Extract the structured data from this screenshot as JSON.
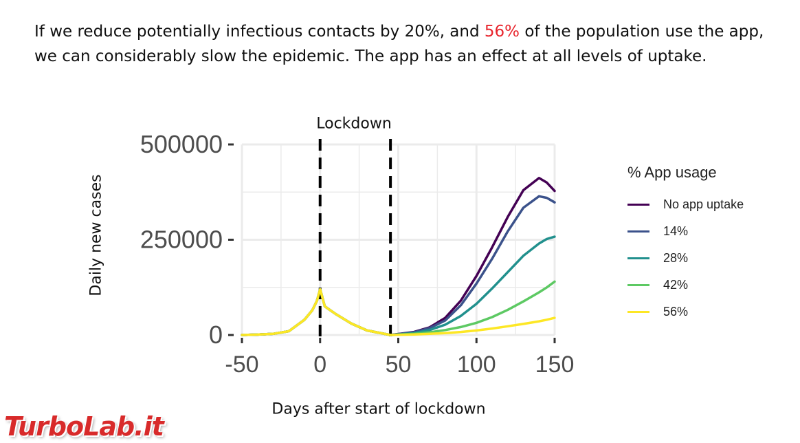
{
  "headline": {
    "part1": "If we reduce potentially infectious contacts by 20%, and ",
    "highlight": "56%",
    "part2": " of the population use the app, we can considerably slow the epidemic. The app has an effect at all levels of uptake."
  },
  "colors": {
    "highlight": "#e8242c",
    "panel_background": "#ffffff",
    "gridline": "#ebebeb",
    "axis_text": "#4d4d4d",
    "vline": "#000000"
  },
  "chart_data": {
    "type": "line",
    "title": "",
    "xlabel": "Days after start of lockdown",
    "ylabel": "Daily new cases",
    "xlim": [
      -50,
      150
    ],
    "ylim": [
      0,
      500000
    ],
    "x_ticks": [
      "-50",
      "0",
      "50",
      "100",
      "150"
    ],
    "y_ticks": [
      "0",
      "250000",
      "500000"
    ],
    "grid": true,
    "legend": {
      "title": "% App usage",
      "position": "right"
    },
    "vlines": [
      {
        "x": 0,
        "style": "dashed",
        "label": "Lockdown"
      },
      {
        "x": 45,
        "style": "dashed"
      }
    ],
    "x": [
      -50,
      -40,
      -30,
      -20,
      -10,
      -5,
      -2,
      0,
      3,
      10,
      20,
      30,
      45,
      60,
      70,
      80,
      90,
      100,
      110,
      120,
      130,
      140,
      145,
      150
    ],
    "series": [
      {
        "name": "No app uptake",
        "color": "#440154",
        "values": [
          0,
          1000,
          3000,
          10000,
          40000,
          65000,
          90000,
          120000,
          75000,
          55000,
          30000,
          12000,
          0,
          8000,
          20000,
          45000,
          90000,
          155000,
          230000,
          310000,
          380000,
          412000,
          400000,
          378000
        ]
      },
      {
        "name": "14%",
        "color": "#3b528b",
        "values": [
          0,
          1000,
          3000,
          10000,
          40000,
          65000,
          90000,
          120000,
          75000,
          55000,
          30000,
          12000,
          0,
          7000,
          18000,
          38000,
          78000,
          135000,
          200000,
          272000,
          334000,
          364000,
          360000,
          348000
        ]
      },
      {
        "name": "28%",
        "color": "#21908d",
        "values": [
          0,
          1000,
          3000,
          10000,
          40000,
          65000,
          90000,
          120000,
          75000,
          55000,
          30000,
          12000,
          0,
          5000,
          13000,
          27000,
          50000,
          82000,
          122000,
          165000,
          208000,
          240000,
          252000,
          258000
        ]
      },
      {
        "name": "42%",
        "color": "#5dc963",
        "values": [
          0,
          1000,
          3000,
          10000,
          40000,
          65000,
          90000,
          120000,
          75000,
          55000,
          30000,
          12000,
          0,
          3000,
          7000,
          13000,
          21000,
          32000,
          47000,
          66000,
          88000,
          112000,
          125000,
          140000
        ]
      },
      {
        "name": "56%",
        "color": "#fde725",
        "values": [
          0,
          1000,
          3000,
          10000,
          40000,
          65000,
          90000,
          120000,
          75000,
          55000,
          30000,
          12000,
          0,
          1500,
          3000,
          5000,
          8000,
          12000,
          17000,
          23000,
          29000,
          36000,
          40000,
          45000
        ]
      }
    ]
  },
  "watermark": "TurboLab.it"
}
